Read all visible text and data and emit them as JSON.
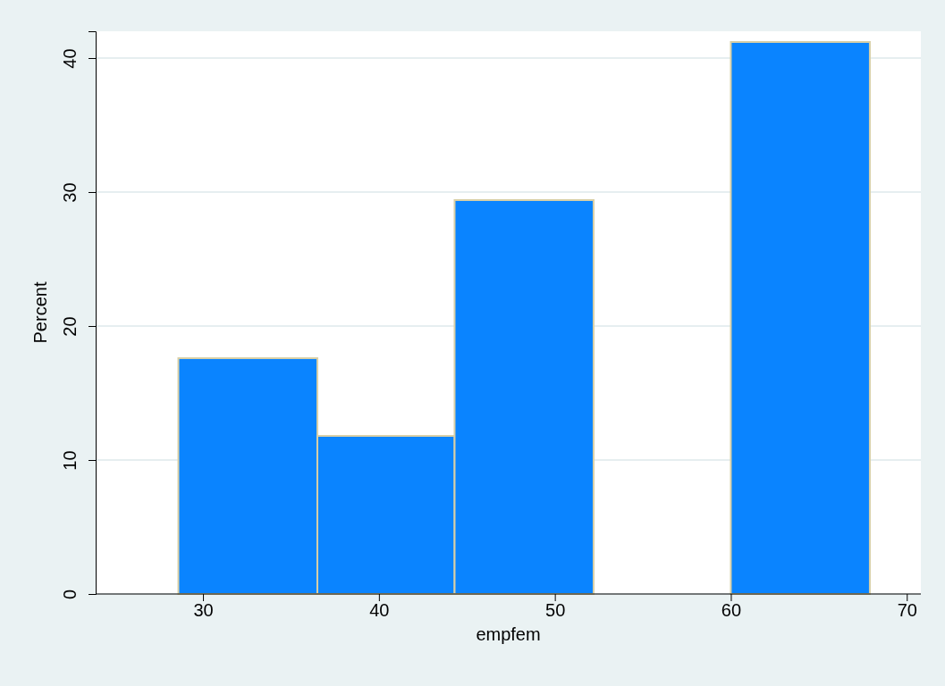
{
  "chart_data": {
    "type": "histogram",
    "xlabel": "empfem",
    "ylabel": "Percent",
    "bins": [
      28.6,
      36.5,
      44.3,
      52.2,
      60.0,
      67.9
    ],
    "values": [
      17.6,
      11.8,
      29.4,
      0,
      41.2
    ],
    "color": "#0a84ff",
    "xlim": [
      23.9,
      70.8
    ],
    "xticks": [
      30,
      40,
      50,
      60,
      70
    ],
    "ylim": [
      0,
      42
    ],
    "yticks": [
      0,
      10,
      20,
      30,
      40
    ],
    "grid": "y"
  }
}
